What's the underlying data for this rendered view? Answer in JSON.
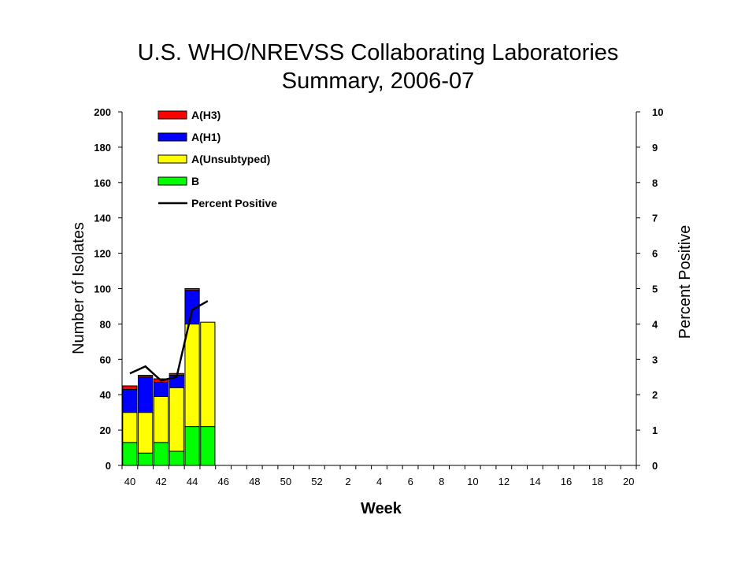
{
  "chart_data": {
    "type": "bar",
    "title": "U.S. WHO/NREVSS Collaborating Laboratories",
    "subtitle": "Summary, 2006-07",
    "xlabel": "Week",
    "ylabel": "Number of Isolates",
    "y2label": "Percent Positive",
    "ylim": [
      0,
      200
    ],
    "y2lim": [
      0,
      10
    ],
    "yticks": [
      "0",
      "20",
      "40",
      "60",
      "80",
      "100",
      "120",
      "140",
      "160",
      "180",
      "200"
    ],
    "y2ticks": [
      "0",
      "1",
      "2",
      "3",
      "4",
      "5",
      "6",
      "7",
      "8",
      "9",
      "10"
    ],
    "xtick_labels": [
      "40",
      "42",
      "44",
      "46",
      "48",
      "50",
      "52",
      "2",
      "4",
      "6",
      "8",
      "10",
      "12",
      "14",
      "16",
      "18",
      "20"
    ],
    "weeks": [
      "40",
      "41",
      "42",
      "43",
      "44",
      "45",
      "46",
      "47",
      "48",
      "49",
      "50",
      "51",
      "52",
      "1",
      "2",
      "3",
      "4",
      "5",
      "6",
      "7",
      "8",
      "9",
      "10",
      "11",
      "12",
      "13",
      "14",
      "15",
      "16",
      "17",
      "18",
      "19",
      "20"
    ],
    "categories": [
      "40",
      "41",
      "42",
      "43",
      "44",
      "45"
    ],
    "series": [
      {
        "name": "B",
        "color": "#00ff00",
        "values": [
          13,
          7,
          13,
          8,
          22,
          22
        ]
      },
      {
        "name": "A(Unsubtyped)",
        "color": "#ffff00",
        "values": [
          17,
          23,
          26,
          36,
          58,
          59
        ]
      },
      {
        "name": "A(H1)",
        "color": "#0000ff",
        "values": [
          13,
          20,
          8,
          7,
          19,
          0
        ]
      },
      {
        "name": "A(H3)",
        "color": "#ff0000",
        "values": [
          2,
          1,
          2,
          1,
          1,
          0
        ]
      }
    ],
    "line_series": {
      "name": "Percent Positive",
      "color": "#000000",
      "values": [
        2.6,
        2.8,
        2.4,
        2.5,
        4.4,
        4.65
      ]
    },
    "legend": {
      "placement": "top-left",
      "entries": [
        "A(H3)",
        "A(H1)",
        "A(Unsubtyped)",
        "B",
        "Percent Positive"
      ]
    },
    "grid": false
  }
}
